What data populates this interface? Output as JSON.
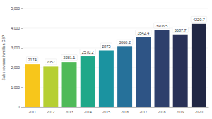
{
  "chart_data": {
    "type": "bar",
    "y_label": "Sales revenue in million GBP",
    "categories": [
      "2011",
      "2012",
      "2013",
      "2014",
      "2015",
      "2016",
      "2017",
      "2018",
      "2019",
      "2020"
    ],
    "values": [
      2174,
      2057,
      2281.1,
      2570.2,
      2875,
      3060.2,
      3542.4,
      3906.5,
      3687.7,
      4220.7
    ],
    "colors": [
      "#f7c61b",
      "#b6cf33",
      "#4fba58",
      "#1fa889",
      "#1b93a0",
      "#26719a",
      "#2e5485",
      "#2e3f6c",
      "#293157",
      "#212744"
    ],
    "ylim": [
      0,
      5000
    ],
    "yticks": [
      0,
      {
        "value": 1000,
        "label": "1,000"
      },
      {
        "value": 2000,
        "label": "2,000"
      },
      {
        "value": 3000,
        "label": "3,000"
      },
      {
        "value": 4000,
        "label": "4,000"
      },
      {
        "value": 5000,
        "label": "5,000"
      }
    ],
    "grid": true,
    "data_labels": true
  }
}
